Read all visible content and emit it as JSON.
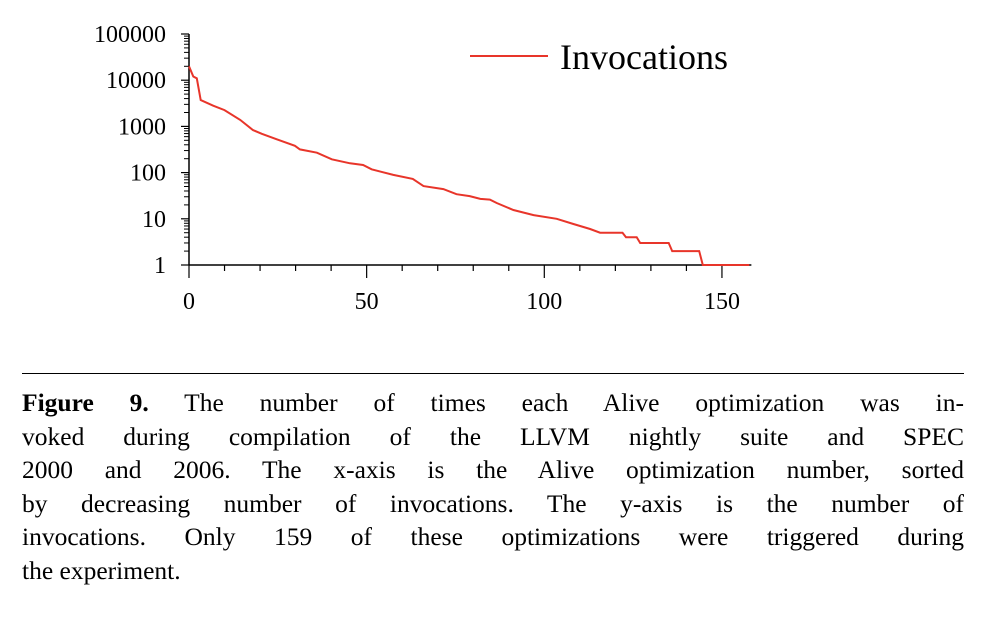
{
  "chart_data": {
    "type": "line",
    "title": "",
    "xlabel": "",
    "ylabel": "",
    "yscale": "log",
    "xlim": [
      0,
      158
    ],
    "ylim": [
      1,
      100000
    ],
    "xticks": [
      0,
      50,
      100,
      150
    ],
    "xtick_labels": [
      "0",
      "50",
      "100",
      "150"
    ],
    "yticks": [
      1,
      10,
      100,
      1000,
      10000,
      100000
    ],
    "ytick_labels": [
      "1",
      "10",
      "100",
      "1000",
      "10000",
      "100000"
    ],
    "legend": {
      "placement": "top-right",
      "entries": [
        "Invocations"
      ]
    },
    "series": [
      {
        "name": "Invocations",
        "color": "#e8352a",
        "points": [
          [
            0,
            20000
          ],
          [
            1.2,
            12000
          ],
          [
            2.2,
            11000
          ],
          [
            3.3,
            3700
          ],
          [
            6.8,
            2800
          ],
          [
            10,
            2250
          ],
          [
            14.4,
            1380
          ],
          [
            18,
            830
          ],
          [
            20.5,
            690
          ],
          [
            24.7,
            525
          ],
          [
            29.8,
            380
          ],
          [
            31.2,
            318
          ],
          [
            36,
            270
          ],
          [
            40.2,
            194
          ],
          [
            45.3,
            159
          ],
          [
            49,
            146
          ],
          [
            51.4,
            118
          ],
          [
            57.5,
            89
          ],
          [
            63,
            73
          ],
          [
            66,
            51
          ],
          [
            71.6,
            44
          ],
          [
            75.3,
            34
          ],
          [
            79,
            31
          ],
          [
            82,
            27
          ],
          [
            84.7,
            26
          ],
          [
            86.6,
            22
          ],
          [
            91.3,
            15.5
          ],
          [
            97,
            12
          ],
          [
            103.5,
            10
          ],
          [
            108.2,
            7.7
          ],
          [
            112.9,
            6
          ],
          [
            115.7,
            5
          ],
          [
            122,
            5
          ],
          [
            123,
            4
          ],
          [
            126,
            4
          ],
          [
            127,
            3
          ],
          [
            135,
            3
          ],
          [
            136,
            2
          ],
          [
            143.6,
            2
          ],
          [
            144.6,
            1
          ],
          [
            157.7,
            1
          ]
        ]
      }
    ]
  },
  "caption": {
    "label": "Figure 9.",
    "lines": [
      " The number of times each Alive optimization was in-",
      "voked during compilation of the LLVM nightly suite and SPEC",
      "2000 and 2006. The x-axis is the Alive optimization number, sorted",
      "by decreasing number of invocations. The y-axis is the number of",
      "invocations. Only 159 of these optimizations were triggered during",
      "the experiment."
    ]
  }
}
